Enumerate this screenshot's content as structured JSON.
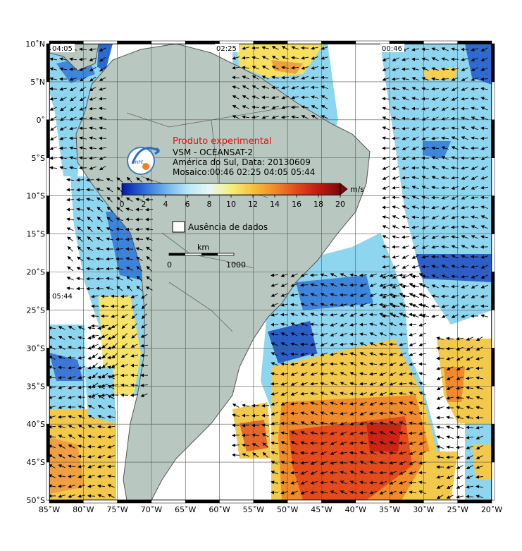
{
  "annotation": {
    "experimental_label": "Produto experimental",
    "product": "VSM - OCEANSAT-2",
    "region_date": "América do Sul, Data: 20130609",
    "mosaic": "Mosaico:00:46 02:25 04:05 05:44"
  },
  "pass_times": [
    "04:05",
    "02:25",
    "00:46",
    "05:44"
  ],
  "colorbar": {
    "unit": "m/s",
    "tick_labels": [
      "0",
      "2",
      "4",
      "6",
      "8",
      "10",
      "12",
      "14",
      "16",
      "18",
      "20"
    ],
    "stops": [
      "#0018a8",
      "#2f6bd8",
      "#6fb2ea",
      "#b9e6f5",
      "#e8f7f5",
      "#f5f07a",
      "#f7c23a",
      "#f08a2a",
      "#e24a1e",
      "#c01a12",
      "#7a0a08"
    ],
    "min": 0,
    "max": 20
  },
  "no_data_label": "Ausência de dados",
  "scale_bar": {
    "unit": "km",
    "start": "0",
    "end": "1000"
  },
  "lat_labels": [
    "10˚N",
    "5˚N",
    "0˚",
    "5˚S",
    "10˚S",
    "15˚S",
    "20˚S",
    "25˚S",
    "30˚S",
    "35˚S",
    "40˚S",
    "45˚S",
    "50˚S"
  ],
  "lon_labels": [
    "85˚W",
    "80˚W",
    "75˚W",
    "70˚W",
    "65˚W",
    "60˚W",
    "55˚W",
    "50˚W",
    "45˚W",
    "40˚W",
    "35˚W",
    "30˚W",
    "25˚W",
    "20˚W"
  ],
  "colors": {
    "land": "#b8c8c0",
    "ocean_bg": "#dfe8e4",
    "coast": "#555555"
  }
}
